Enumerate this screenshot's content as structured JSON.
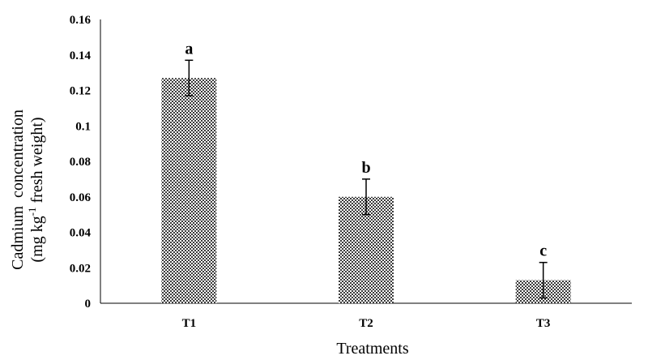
{
  "chart_data": {
    "type": "bar",
    "categories": [
      "T1",
      "T2",
      "T3"
    ],
    "values": [
      0.127,
      0.06,
      0.013
    ],
    "errors": [
      0.01,
      0.01,
      0.01
    ],
    "significance_letters": [
      "a",
      "b",
      "c"
    ],
    "title": "",
    "xlabel": "Treatments",
    "ylabel_line1": "Cadmium  concentration",
    "ylabel_line2_prefix": "(mg kg",
    "ylabel_line2_sup": "-1",
    "ylabel_line2_suffix": " fresh weight)",
    "ylim": [
      0,
      0.16
    ],
    "yticks": [
      "0",
      "0.02",
      "0.04",
      "0.06",
      "0.08",
      "0.1",
      "0.12",
      "0.14",
      "0.16"
    ],
    "ytick_values": [
      0,
      0.02,
      0.04,
      0.06,
      0.08,
      0.1,
      0.12,
      0.14,
      0.16
    ],
    "grid": false,
    "legend": "none",
    "bar_fill": "#3a3a3a",
    "bar_pattern_light": "#ffffff",
    "axis_color": "#000000"
  }
}
